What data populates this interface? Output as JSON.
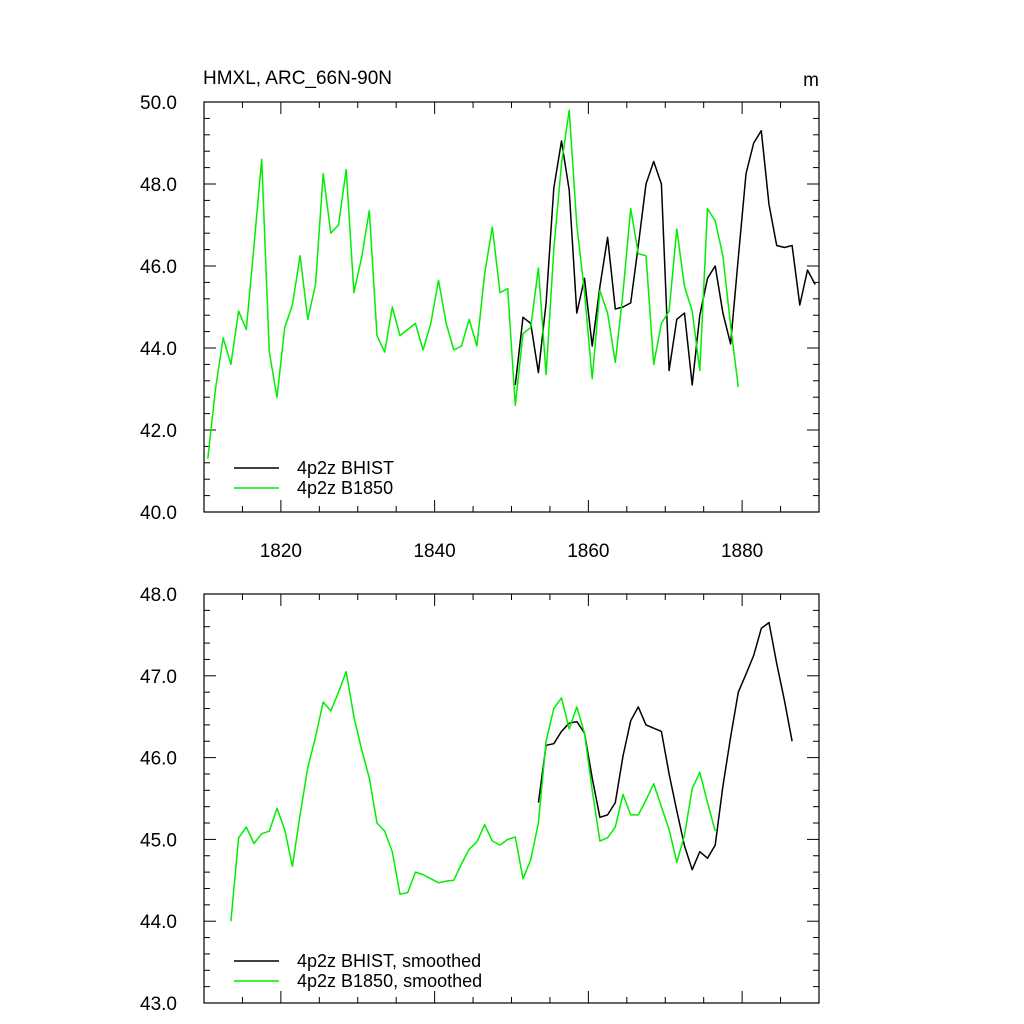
{
  "chart_data": [
    {
      "type": "line",
      "title": "HMXL, ARC_66N-90N",
      "units": "m",
      "xlabel": "",
      "ylabel": "",
      "xlim": [
        1810,
        1890
      ],
      "ylim": [
        40,
        50
      ],
      "x_ticks": [
        1820,
        1840,
        1860,
        1880
      ],
      "x_tick_labels": [
        "1820",
        "1840",
        "1860",
        "1880"
      ],
      "y_ticks": [
        40,
        42,
        44,
        46,
        48,
        50
      ],
      "y_tick_labels": [
        "40.0",
        "42.0",
        "44.0",
        "46.0",
        "48.0",
        "50.0"
      ],
      "legend_position": "bottom-left",
      "series": [
        {
          "name": "4p2z BHIST",
          "color": "#000000",
          "x": [
            1850.5,
            1851.5,
            1852.5,
            1853.5,
            1854.5,
            1855.5,
            1856.5,
            1857.5,
            1858.5,
            1859.5,
            1860.5,
            1861.5,
            1862.5,
            1863.5,
            1864.5,
            1865.5,
            1866.5,
            1867.5,
            1868.5,
            1869.5,
            1870.5,
            1871.5,
            1872.5,
            1873.5,
            1874.5,
            1875.5,
            1876.5,
            1877.5,
            1878.5,
            1879.5,
            1880.5,
            1881.5,
            1882.5,
            1883.5,
            1884.5,
            1885.5,
            1886.5,
            1887.5,
            1888.5,
            1889.5
          ],
          "y": [
            43.1,
            44.75,
            44.6,
            43.4,
            45.1,
            47.9,
            49.05,
            47.85,
            44.85,
            45.7,
            44.05,
            45.5,
            46.7,
            44.95,
            45.0,
            45.1,
            46.5,
            48.0,
            48.55,
            48.0,
            43.45,
            44.7,
            44.85,
            43.1,
            44.8,
            45.7,
            46.0,
            44.85,
            44.1,
            46.2,
            48.25,
            49.0,
            49.3,
            47.5,
            46.5,
            46.45,
            46.5,
            45.05,
            45.9,
            45.55
          ]
        },
        {
          "name": "4p2z B1850",
          "color": "#00ee00",
          "x": [
            1810.5,
            1811.5,
            1812.5,
            1813.5,
            1814.5,
            1815.5,
            1816.5,
            1817.5,
            1818.5,
            1819.5,
            1820.5,
            1821.5,
            1822.5,
            1823.5,
            1824.5,
            1825.5,
            1826.5,
            1827.5,
            1828.5,
            1829.5,
            1830.5,
            1831.5,
            1832.5,
            1833.5,
            1834.5,
            1835.5,
            1836.5,
            1837.5,
            1838.5,
            1839.5,
            1840.5,
            1841.5,
            1842.5,
            1843.5,
            1844.5,
            1845.5,
            1846.5,
            1847.5,
            1848.5,
            1849.5,
            1850.5,
            1851.5,
            1852.5,
            1853.5,
            1854.5,
            1855.5,
            1856.5,
            1857.5,
            1858.5,
            1859.5,
            1860.5,
            1861.5,
            1862.5,
            1863.5,
            1864.5,
            1865.5,
            1866.5,
            1867.5,
            1868.5,
            1869.5,
            1870.5,
            1871.5,
            1872.5,
            1873.5,
            1874.5,
            1875.5,
            1876.5,
            1877.5,
            1878.5,
            1879.5
          ],
          "y": [
            41.3,
            43.0,
            44.25,
            43.6,
            44.9,
            44.45,
            46.5,
            48.6,
            43.9,
            42.8,
            44.5,
            45.05,
            46.25,
            44.7,
            45.55,
            48.25,
            46.8,
            47.0,
            48.35,
            45.35,
            46.2,
            47.35,
            44.3,
            43.9,
            45.0,
            44.3,
            44.45,
            44.6,
            43.95,
            44.6,
            45.65,
            44.6,
            43.95,
            44.05,
            44.7,
            44.05,
            45.8,
            46.95,
            45.35,
            45.45,
            42.6,
            44.35,
            44.5,
            45.95,
            43.35,
            46.4,
            48.5,
            49.8,
            47.0,
            45.35,
            43.25,
            45.4,
            44.85,
            43.65,
            45.35,
            47.4,
            46.3,
            46.25,
            43.6,
            44.6,
            44.9,
            46.9,
            45.5,
            44.9,
            43.45,
            47.4,
            47.1,
            46.25,
            44.55,
            43.05
          ]
        }
      ]
    },
    {
      "type": "line",
      "title": "",
      "xlabel": "",
      "ylabel": "",
      "xlim": [
        1810,
        1890
      ],
      "ylim": [
        43,
        48
      ],
      "x_ticks": [
        1820,
        1840,
        1860,
        1880
      ],
      "y_ticks": [
        43,
        44,
        45,
        46,
        47,
        48
      ],
      "y_tick_labels": [
        "43.0",
        "44.0",
        "45.0",
        "46.0",
        "47.0",
        "48.0"
      ],
      "legend_position": "bottom-left",
      "series": [
        {
          "name": "4p2z BHIST, smoothed",
          "color": "#000000",
          "x": [
            1853.5,
            1854.5,
            1855.5,
            1856.5,
            1857.5,
            1858.5,
            1859.5,
            1860.5,
            1861.5,
            1862.5,
            1863.5,
            1864.5,
            1865.5,
            1866.5,
            1867.5,
            1868.5,
            1869.5,
            1870.5,
            1871.5,
            1872.5,
            1873.5,
            1874.5,
            1875.5,
            1876.5,
            1877.5,
            1878.5,
            1879.5,
            1880.5,
            1881.5,
            1882.5,
            1883.5,
            1884.5,
            1885.5,
            1886.5
          ],
          "y": [
            45.45,
            46.15,
            46.17,
            46.32,
            46.42,
            46.44,
            46.3,
            45.75,
            45.27,
            45.3,
            45.45,
            46.02,
            46.45,
            46.62,
            46.4,
            46.36,
            46.32,
            45.8,
            45.35,
            44.92,
            44.63,
            44.85,
            44.77,
            44.93,
            45.65,
            46.25,
            46.8,
            47.02,
            47.25,
            47.58,
            47.65,
            47.15,
            46.7,
            46.2
          ]
        },
        {
          "name": "4p2z B1850, smoothed",
          "color": "#00ee00",
          "x": [
            1813.5,
            1814.5,
            1815.5,
            1816.5,
            1817.5,
            1818.5,
            1819.5,
            1820.5,
            1821.5,
            1822.5,
            1823.5,
            1824.5,
            1825.5,
            1826.5,
            1827.5,
            1828.5,
            1829.5,
            1830.5,
            1831.5,
            1832.5,
            1833.5,
            1834.5,
            1835.5,
            1836.5,
            1837.5,
            1838.5,
            1839.5,
            1840.5,
            1841.5,
            1842.5,
            1843.5,
            1844.5,
            1845.5,
            1846.5,
            1847.5,
            1848.5,
            1849.5,
            1850.5,
            1851.5,
            1852.5,
            1853.5,
            1854.5,
            1855.5,
            1856.5,
            1857.5,
            1858.5,
            1859.5,
            1860.5,
            1861.5,
            1862.5,
            1863.5,
            1864.5,
            1865.5,
            1866.5,
            1867.5,
            1868.5,
            1869.5,
            1870.5,
            1871.5,
            1872.5,
            1873.5,
            1874.5,
            1875.5,
            1876.5
          ],
          "y": [
            44.0,
            45.02,
            45.15,
            44.95,
            45.07,
            45.1,
            45.38,
            45.12,
            44.67,
            45.3,
            45.88,
            46.25,
            46.68,
            46.57,
            46.8,
            47.05,
            46.5,
            46.1,
            45.75,
            45.2,
            45.1,
            44.85,
            44.33,
            44.35,
            44.6,
            44.57,
            44.52,
            44.47,
            44.49,
            44.5,
            44.7,
            44.88,
            44.97,
            45.18,
            44.98,
            44.93,
            45.0,
            45.03,
            44.52,
            44.75,
            45.2,
            46.2,
            46.6,
            46.73,
            46.35,
            46.62,
            46.3,
            45.6,
            44.98,
            45.02,
            45.15,
            45.55,
            45.3,
            45.3,
            45.48,
            45.68,
            45.4,
            45.12,
            44.72,
            45.05,
            45.62,
            45.82,
            45.45,
            45.1
          ]
        }
      ]
    }
  ]
}
